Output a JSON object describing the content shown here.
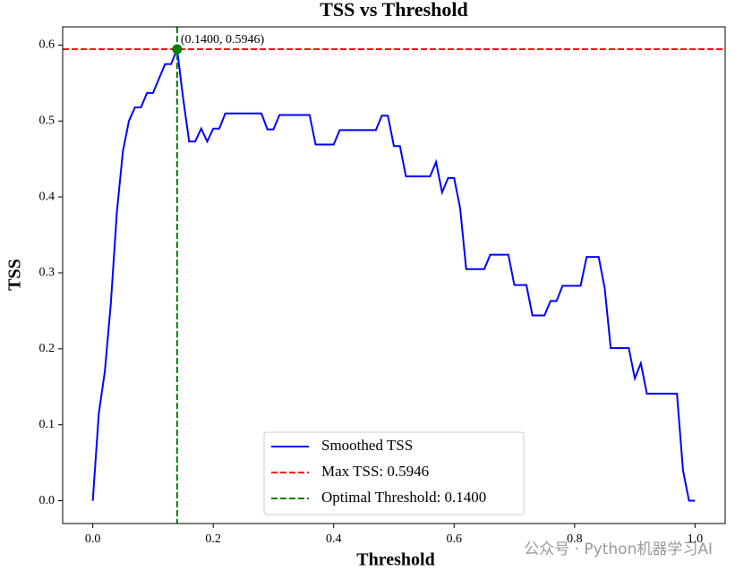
{
  "chart_data": {
    "type": "line",
    "title": "TSS vs Threshold",
    "x_label": "Threshold",
    "y_label": "TSS",
    "x": [
      0,
      0.01,
      0.02,
      0.03,
      0.04,
      0.05,
      0.06,
      0.07,
      0.08,
      0.09,
      0.1,
      0.11,
      0.12,
      0.13,
      0.14,
      0.15,
      0.16,
      0.17,
      0.18,
      0.19,
      0.2,
      0.21,
      0.22,
      0.23,
      0.24,
      0.25,
      0.26,
      0.27,
      0.28,
      0.29,
      0.3,
      0.31,
      0.32,
      0.33,
      0.34,
      0.35,
      0.36,
      0.37,
      0.38,
      0.39,
      0.4,
      0.41,
      0.42,
      0.43,
      0.44,
      0.45,
      0.46,
      0.47,
      0.48,
      0.49,
      0.5,
      0.51,
      0.52,
      0.53,
      0.54,
      0.55,
      0.56,
      0.57,
      0.58,
      0.59,
      0.6,
      0.61,
      0.62,
      0.63,
      0.64,
      0.65,
      0.66,
      0.67,
      0.68,
      0.69,
      0.7,
      0.71,
      0.72,
      0.73,
      0.74,
      0.75,
      0.76,
      0.77,
      0.78,
      0.79,
      0.8,
      0.81,
      0.82,
      0.83,
      0.84,
      0.85,
      0.86,
      0.87,
      0.88,
      0.89,
      0.9,
      0.91,
      0.92,
      0.93,
      0.94,
      0.95,
      0.96,
      0.97,
      0.98,
      0.99,
      1
    ],
    "series": [
      {
        "name": "Smoothed TSS",
        "color": "#0000ff",
        "values": [
          0,
          0.115,
          0.17,
          0.26,
          0.38,
          0.46,
          0.5,
          0.518,
          0.518,
          0.537,
          0.537,
          0.556,
          0.575,
          0.575,
          0.5946,
          0.53,
          0.473,
          0.473,
          0.49,
          0.473,
          0.49,
          0.49,
          0.51,
          0.51,
          0.51,
          0.51,
          0.51,
          0.51,
          0.51,
          0.489,
          0.489,
          0.508,
          0.508,
          0.508,
          0.508,
          0.508,
          0.508,
          0.469,
          0.469,
          0.469,
          0.469,
          0.488,
          0.488,
          0.488,
          0.488,
          0.488,
          0.488,
          0.488,
          0.507,
          0.507,
          0.467,
          0.467,
          0.427,
          0.427,
          0.427,
          0.427,
          0.427,
          0.446,
          0.406,
          0.425,
          0.425,
          0.385,
          0.305,
          0.305,
          0.305,
          0.305,
          0.324,
          0.324,
          0.324,
          0.324,
          0.284,
          0.284,
          0.284,
          0.244,
          0.244,
          0.244,
          0.263,
          0.263,
          0.283,
          0.283,
          0.283,
          0.283,
          0.321,
          0.321,
          0.321,
          0.28,
          0.201,
          0.201,
          0.201,
          0.201,
          0.161,
          0.181,
          0.141,
          0.141,
          0.141,
          0.141,
          0.141,
          0.141,
          0.04,
          0,
          0
        ]
      }
    ],
    "hlines": [
      {
        "name": "Max TSS: 0.5946",
        "value": 0.5946,
        "color": "#ff0000"
      }
    ],
    "vlines": [
      {
        "name": "Optimal Threshold: 0.1400",
        "value": 0.14,
        "color": "#008000"
      }
    ],
    "points": [
      {
        "x": 0.14,
        "y": 0.5946,
        "color": "#008000",
        "label": "(0.1400, 0.5946)"
      }
    ],
    "xlim": [
      -0.05,
      1.05
    ],
    "ylim": [
      -0.03,
      0.624
    ],
    "xticks": [
      {
        "value": 0,
        "label": "0.0"
      },
      0.2,
      0.4,
      0.6,
      0.8,
      {
        "value": 1,
        "label": "1.0"
      }
    ],
    "yticks": [
      {
        "value": 0,
        "label": "0.0"
      },
      0.1,
      0.2,
      0.3,
      0.4,
      0.5,
      0.6
    ],
    "grid": false,
    "legend": "lower center"
  },
  "watermark": "公众号 · Python机器学习AI"
}
